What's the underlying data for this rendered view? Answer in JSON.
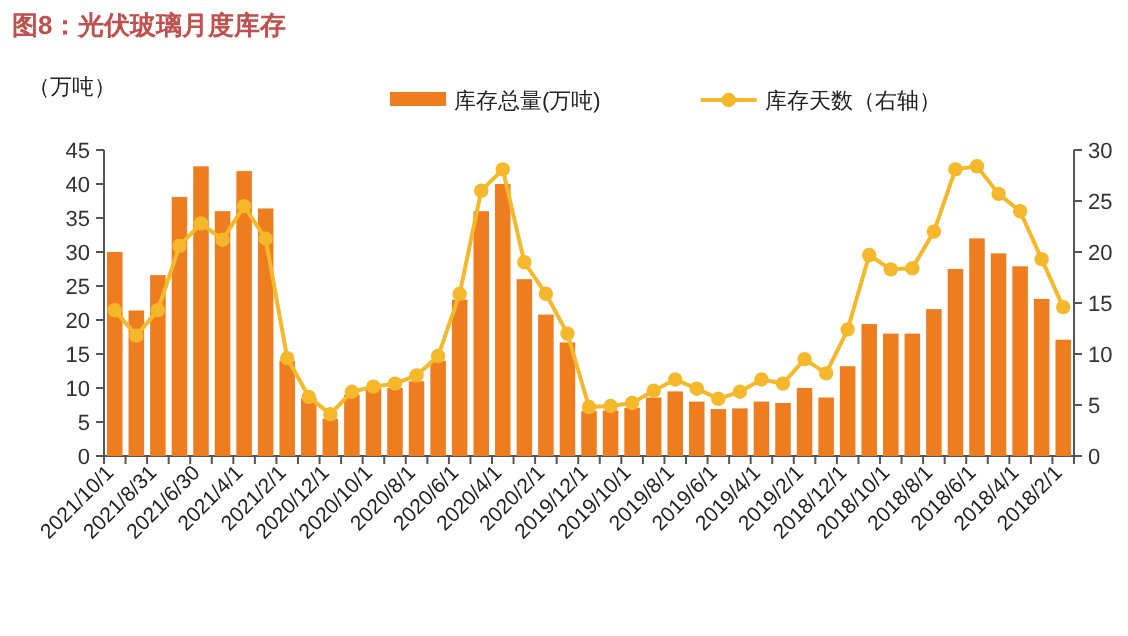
{
  "chart_data": {
    "type": "bar",
    "title": "图8：光伏玻璃月度库存",
    "ylabel": "（万吨）",
    "categories": [
      "2021/10/1",
      null,
      "2021/8/31",
      null,
      "2021/6/30",
      null,
      "2021/4/1",
      null,
      "2021/2/1",
      null,
      "2020/12/1",
      null,
      "2020/10/1",
      null,
      "2020/8/1",
      null,
      "2020/6/1",
      null,
      "2020/4/1",
      null,
      "2020/2/1",
      null,
      "2019/12/1",
      null,
      "2019/10/1",
      null,
      "2019/8/1",
      null,
      "2019/6/1",
      null,
      "2019/4/1",
      null,
      "2019/2/1",
      null,
      "2018/12/1",
      null,
      "2018/10/1",
      null,
      "2018/8/1",
      null,
      "2018/6/1",
      null,
      "2018/4/1",
      null,
      "2018/2/1"
    ],
    "series": [
      {
        "name": "库存总量(万吨)",
        "color": "#ee7d1f",
        "values": [
          30.0,
          21.4,
          26.6,
          38.1,
          42.6,
          36.0,
          41.9,
          36.4,
          14.0,
          8.5,
          5.5,
          9.0,
          10.0,
          10.0,
          11.0,
          14.0,
          23.0,
          36.0,
          40.0,
          26.0,
          20.8,
          16.7,
          6.6,
          6.7,
          7.1,
          8.6,
          9.5,
          8.0,
          6.9,
          7.0,
          8.0,
          7.8,
          10.0,
          8.6,
          13.2,
          19.4,
          18.0,
          18.0,
          21.6,
          27.5,
          32.0,
          29.8,
          27.9,
          23.1,
          17.1
        ]
      },
      {
        "name": "库存天数（右轴）",
        "type": "line",
        "axis": "y2",
        "marker": "circle",
        "color": "#f5b82a",
        "values": [
          14.3,
          11.8,
          14.3,
          20.6,
          22.8,
          21.2,
          24.5,
          21.3,
          9.6,
          5.8,
          4.1,
          6.3,
          6.8,
          7.1,
          7.9,
          9.8,
          15.9,
          26.0,
          28.1,
          19.0,
          15.9,
          12.0,
          4.8,
          4.9,
          5.2,
          6.4,
          7.5,
          6.6,
          5.6,
          6.3,
          7.5,
          7.1,
          9.5,
          8.1,
          12.4,
          19.7,
          18.3,
          18.4,
          22.0,
          28.1,
          28.4,
          25.7,
          24.0,
          19.3,
          14.6
        ]
      }
    ],
    "ylim": [
      0,
      45
    ],
    "yticks": [
      0,
      5,
      10,
      15,
      20,
      25,
      30,
      35,
      40,
      45
    ],
    "y2lim": [
      0,
      30
    ],
    "y2ticks": [
      0,
      5,
      10,
      15,
      20,
      25,
      30
    ],
    "legend": "top",
    "grid": false
  }
}
